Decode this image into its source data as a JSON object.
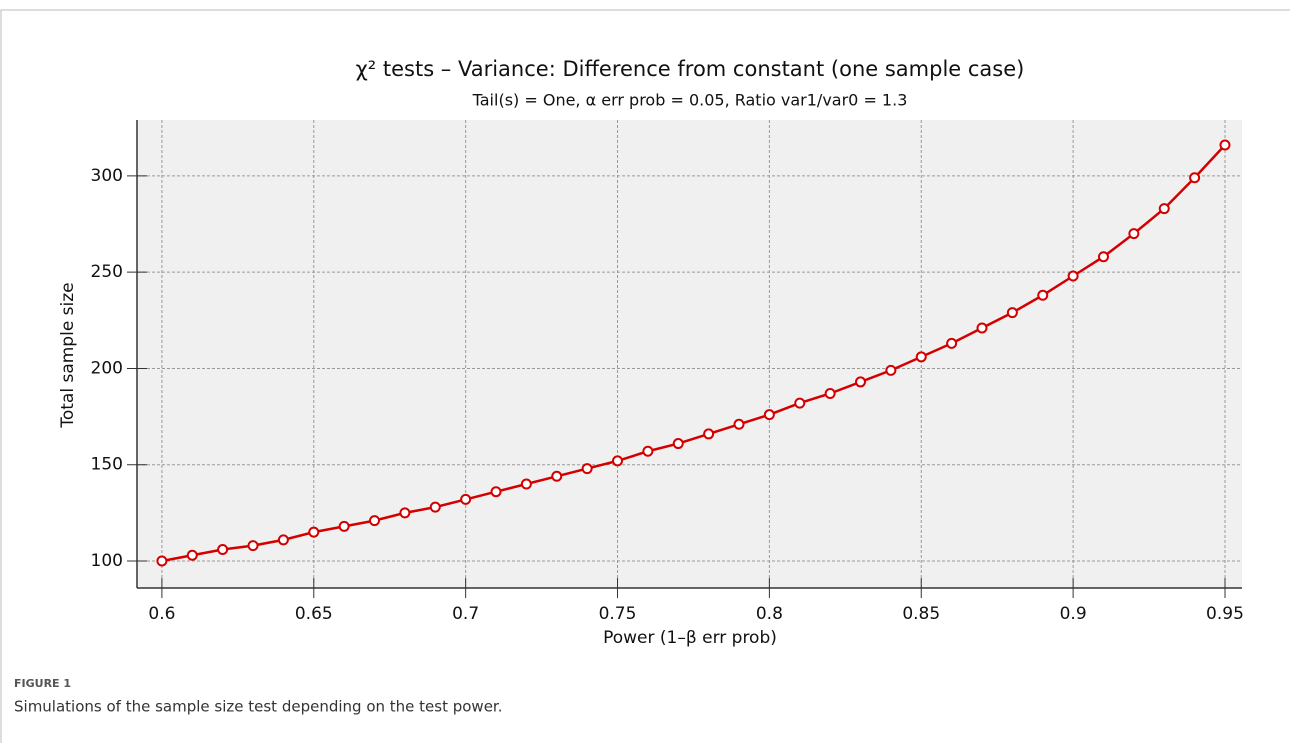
{
  "chart_data": {
    "type": "line",
    "title": "χ² tests – Variance: Difference from constant (one sample case)",
    "subtitle": "Tail(s) = One, α err prob = 0.05, Ratio var1/var0 = 1.3",
    "x_label": "Power (1–β err prob)",
    "y_label": "Total sample size",
    "x": [
      0.6,
      0.61,
      0.62,
      0.63,
      0.64,
      0.65,
      0.66,
      0.67,
      0.68,
      0.69,
      0.7,
      0.71,
      0.72,
      0.73,
      0.74,
      0.75,
      0.76,
      0.77,
      0.78,
      0.79,
      0.8,
      0.81,
      0.82,
      0.83,
      0.84,
      0.85,
      0.86,
      0.87,
      0.88,
      0.89,
      0.9,
      0.91,
      0.92,
      0.93,
      0.94,
      0.95
    ],
    "values": [
      100,
      103,
      106,
      108,
      111,
      115,
      118,
      121,
      125,
      128,
      132,
      136,
      140,
      144,
      148,
      152,
      157,
      161,
      166,
      171,
      176,
      182,
      187,
      193,
      199,
      206,
      213,
      221,
      229,
      238,
      248,
      258,
      270,
      283,
      299,
      316
    ],
    "color": "#d40000",
    "xlim": [
      0.5918,
      0.9556
    ],
    "xticks": [
      0.6,
      0.65,
      0.7,
      0.75,
      0.8,
      0.85,
      0.9,
      0.95
    ],
    "ylim": [
      86,
      329
    ],
    "yticks": [
      100,
      150,
      200,
      250,
      300
    ],
    "grid": true
  },
  "figure": {
    "label": "FIGURE 1",
    "caption": "Simulations of the sample size test depending on the test power."
  }
}
